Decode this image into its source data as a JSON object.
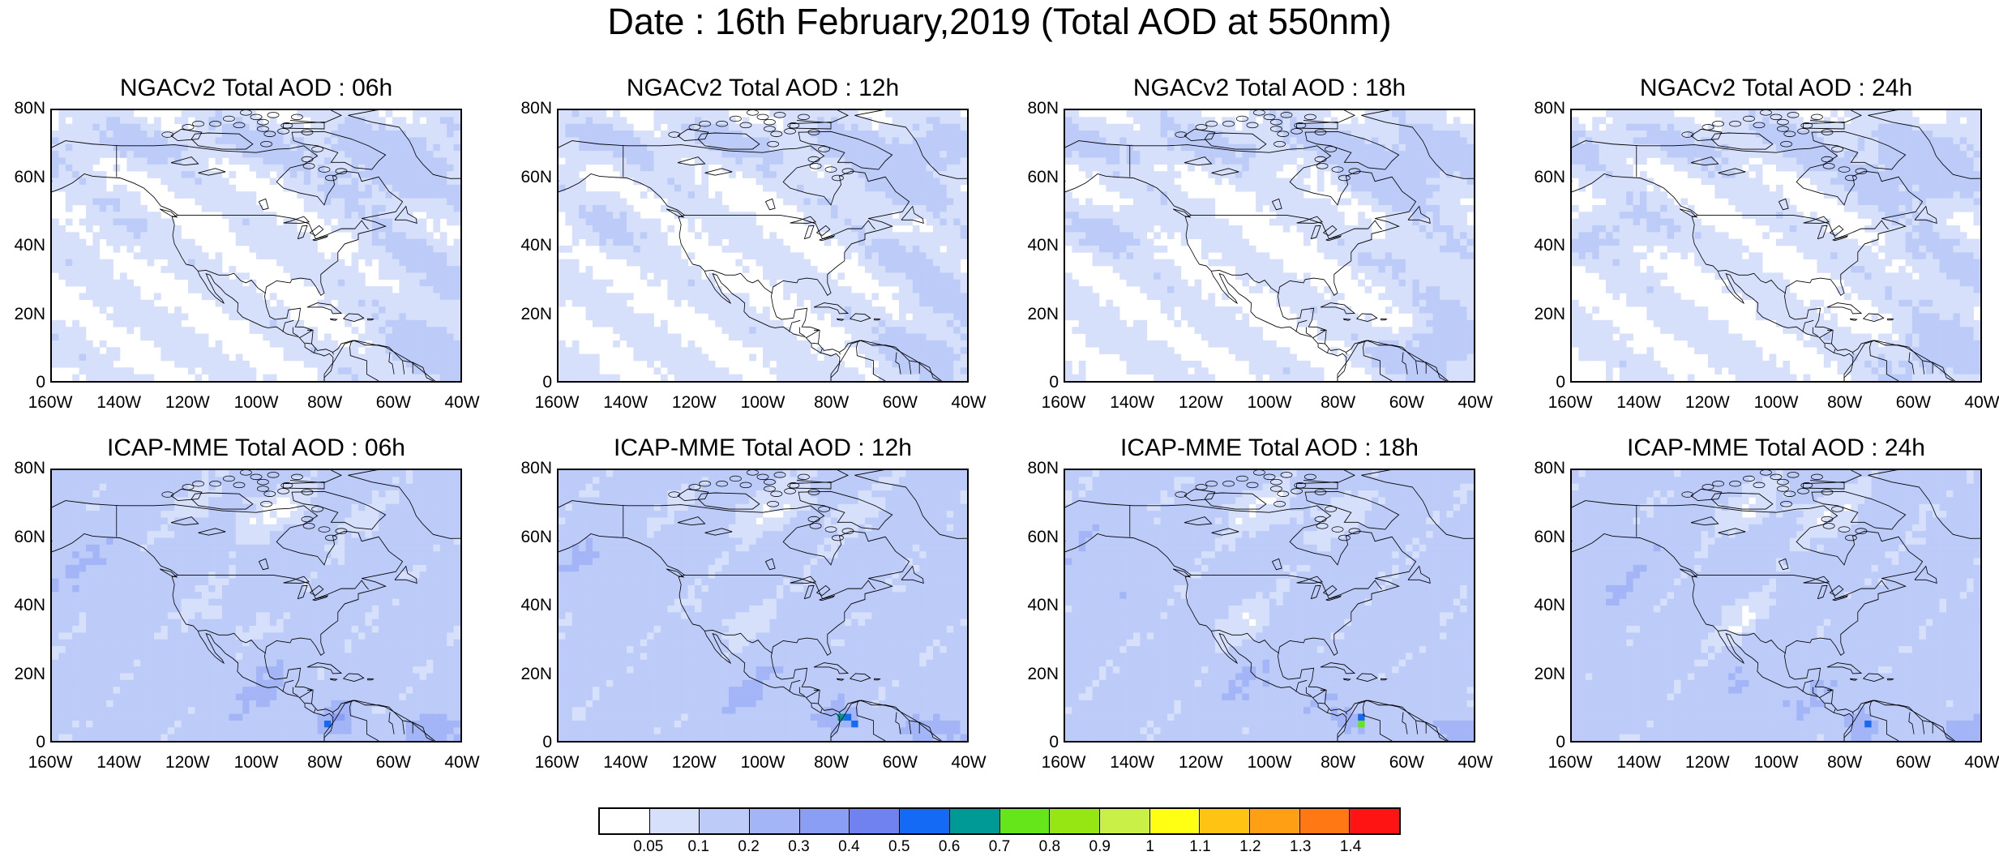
{
  "title": "Date : 16th February,2019 (Total AOD at 550nm)",
  "panels": [
    {
      "title": "NGACv2 Total AOD : 06h",
      "model": "NGACv2",
      "forecast_hour": "06h"
    },
    {
      "title": "NGACv2 Total AOD : 12h",
      "model": "NGACv2",
      "forecast_hour": "12h"
    },
    {
      "title": "NGACv2 Total AOD : 18h",
      "model": "NGACv2",
      "forecast_hour": "18h"
    },
    {
      "title": "NGACv2 Total AOD : 24h",
      "model": "NGACv2",
      "forecast_hour": "24h"
    },
    {
      "title": "ICAP-MME Total AOD : 06h",
      "model": "ICAP-MME",
      "forecast_hour": "06h"
    },
    {
      "title": "ICAP-MME Total AOD : 12h",
      "model": "ICAP-MME",
      "forecast_hour": "12h"
    },
    {
      "title": "ICAP-MME Total AOD : 18h",
      "model": "ICAP-MME",
      "forecast_hour": "18h"
    },
    {
      "title": "ICAP-MME Total AOD : 24h",
      "model": "ICAP-MME",
      "forecast_hour": "24h"
    }
  ],
  "lat_ticks": [
    "80N",
    "60N",
    "40N",
    "20N",
    "0"
  ],
  "lon_ticks": [
    "160W",
    "140W",
    "120W",
    "100W",
    "80W",
    "60W",
    "40W"
  ],
  "colorbar": {
    "colors": [
      "#ffffff",
      "#d6e0fb",
      "#bccbf8",
      "#a3b5f6",
      "#8a9ef3",
      "#6f82f0",
      "#1469f5",
      "#009a96",
      "#64e61a",
      "#96e614",
      "#c8f046",
      "#ffff14",
      "#ffc314",
      "#ffa014",
      "#ff7814",
      "#ff1414"
    ],
    "labels": [
      "0.05",
      "0.1",
      "0.2",
      "0.3",
      "0.4",
      "0.5",
      "0.6",
      "0.7",
      "0.8",
      "0.9",
      "1",
      "1.1",
      "1.2",
      "1.3",
      "1.4"
    ]
  }
}
